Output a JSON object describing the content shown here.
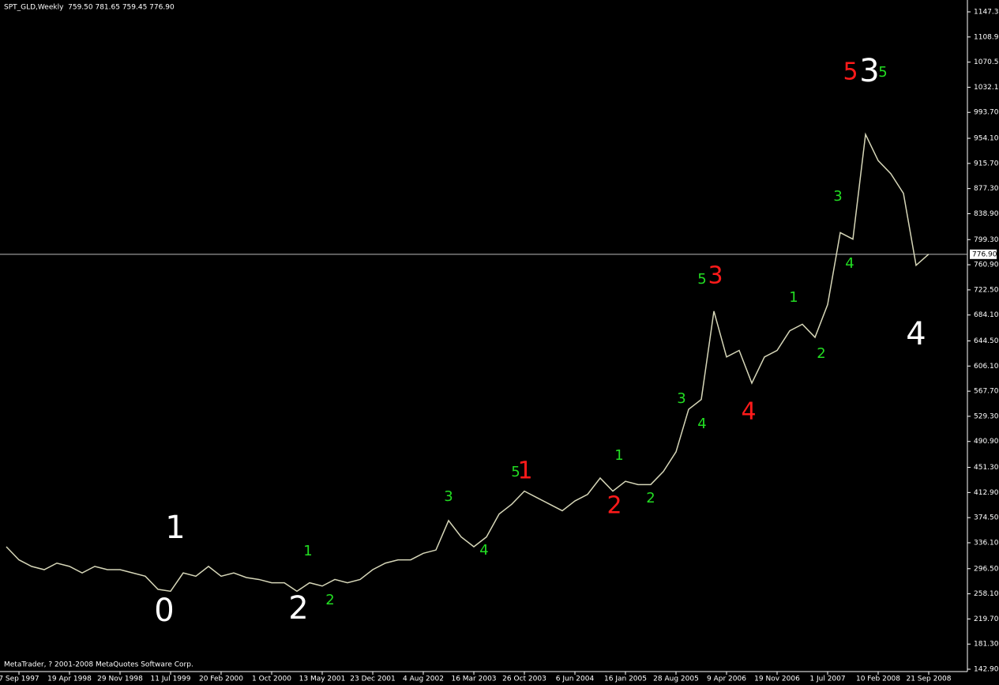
{
  "title": "SPT_GLD,Weekly  759.50 781.65 759.45 776.90",
  "footer": "MetaTrader, ? 2001-2008 MetaQuotes Software Corp.",
  "chart_data": {
    "type": "line",
    "color": "#d6d6b8",
    "categories": [
      null,
      "7 Sep 1997",
      null,
      null,
      null,
      "19 Apr 1998",
      null,
      null,
      null,
      "29 Nov 1998",
      null,
      null,
      null,
      "11 Jul 1999",
      null,
      null,
      null,
      "20 Feb 2000",
      null,
      null,
      null,
      "1 Oct 2000",
      null,
      null,
      null,
      "13 May 2001",
      null,
      null,
      null,
      "23 Dec 2001",
      null,
      null,
      null,
      "4 Aug 2002",
      null,
      null,
      null,
      "16 Mar 2003",
      null,
      null,
      null,
      "26 Oct 2003",
      null,
      null,
      null,
      "6 Jun 2004",
      null,
      null,
      null,
      "16 Jan 2005",
      null,
      null,
      null,
      "28 Aug 2005",
      null,
      null,
      null,
      "9 Apr 2006",
      null,
      null,
      null,
      "19 Nov 2006",
      null,
      null,
      null,
      "1 Jul 2007",
      null,
      null,
      null,
      "10 Feb 2008",
      null,
      null,
      null,
      "21 Sep 2008"
    ],
    "values": [
      330,
      310,
      300,
      295,
      305,
      300,
      290,
      300,
      295,
      295,
      290,
      285,
      265,
      262,
      290,
      285,
      300,
      285,
      290,
      283,
      280,
      275,
      275,
      262,
      275,
      270,
      280,
      275,
      280,
      295,
      305,
      310,
      310,
      320,
      325,
      370,
      345,
      330,
      345,
      380,
      395,
      415,
      405,
      395,
      385,
      400,
      410,
      435,
      415,
      430,
      425,
      425,
      445,
      475,
      540,
      555,
      690,
      620,
      630,
      580,
      620,
      630,
      660,
      670,
      650,
      700,
      810,
      800,
      960,
      920,
      900,
      870,
      760,
      777
    ],
    "ylim": [
      139.3,
      1165.4
    ],
    "yticks": [
      {
        "value": 1147.3,
        "label": "1147.30"
      },
      {
        "value": 1108.9,
        "label": "1108.90"
      },
      {
        "value": 1070.5,
        "label": "1070.50"
      },
      {
        "value": 1032.1,
        "label": "1032.10"
      },
      {
        "value": 993.7,
        "label": "993.70"
      },
      {
        "value": 954.1,
        "label": "954.10"
      },
      {
        "value": 915.7,
        "label": "915.70"
      },
      {
        "value": 877.3,
        "label": "877.30"
      },
      {
        "value": 838.9,
        "label": "838.90"
      },
      {
        "value": 799.3,
        "label": "799.30"
      },
      {
        "value": 760.9,
        "label": "760.90"
      },
      {
        "value": 722.5,
        "label": "722.50"
      },
      {
        "value": 684.1,
        "label": "684.10"
      },
      {
        "value": 644.5,
        "label": "644.50"
      },
      {
        "value": 606.1,
        "label": "606.10"
      },
      {
        "value": 567.7,
        "label": "567.70"
      },
      {
        "value": 529.3,
        "label": "529.30"
      },
      {
        "value": 490.9,
        "label": "490.90"
      },
      {
        "value": 451.3,
        "label": "451.30"
      },
      {
        "value": 412.9,
        "label": "412.90"
      },
      {
        "value": 374.5,
        "label": "374.50"
      },
      {
        "value": 336.1,
        "label": "336.10"
      },
      {
        "value": 296.5,
        "label": "296.50"
      },
      {
        "value": 258.1,
        "label": "258.10"
      },
      {
        "value": 219.7,
        "label": "219.70"
      },
      {
        "value": 181.3,
        "label": "181.30"
      },
      {
        "value": 142.9,
        "label": "142.90"
      }
    ],
    "current_price": {
      "value": 776.9,
      "label": "776.90"
    },
    "annotations": [
      {
        "text": "0",
        "color": "#ffffff"
      },
      {
        "text": "1",
        "color": "#ffffff"
      },
      {
        "text": "2",
        "color": "#ffffff"
      },
      {
        "text": "3",
        "color": "#ffffff"
      },
      {
        "text": "4",
        "color": "#ffffff"
      },
      {
        "text": "5",
        "color": "#ff1a1a"
      },
      {
        "text": "1",
        "color": "#ff1a1a"
      },
      {
        "text": "2",
        "color": "#ff1a1a"
      },
      {
        "text": "3",
        "color": "#ff1a1a"
      },
      {
        "text": "4",
        "color": "#ff1a1a"
      },
      {
        "text": "5",
        "color": "#22dd22"
      },
      {
        "text": "1",
        "color": "#22dd22"
      },
      {
        "text": "2",
        "color": "#22dd22"
      },
      {
        "text": "3",
        "color": "#22dd22"
      },
      {
        "text": "4",
        "color": "#22dd22"
      },
      {
        "text": "5",
        "color": "#22dd22"
      },
      {
        "text": "1",
        "color": "#22dd22"
      },
      {
        "text": "2",
        "color": "#22dd22"
      },
      {
        "text": "3",
        "color": "#22dd22"
      },
      {
        "text": "4",
        "color": "#22dd22"
      },
      {
        "text": "5",
        "color": "#22dd22"
      },
      {
        "text": "1",
        "color": "#22dd22"
      },
      {
        "text": "2",
        "color": "#22dd22"
      },
      {
        "text": "3",
        "color": "#22dd22"
      },
      {
        "text": "4",
        "color": "#22dd22"
      }
    ]
  }
}
